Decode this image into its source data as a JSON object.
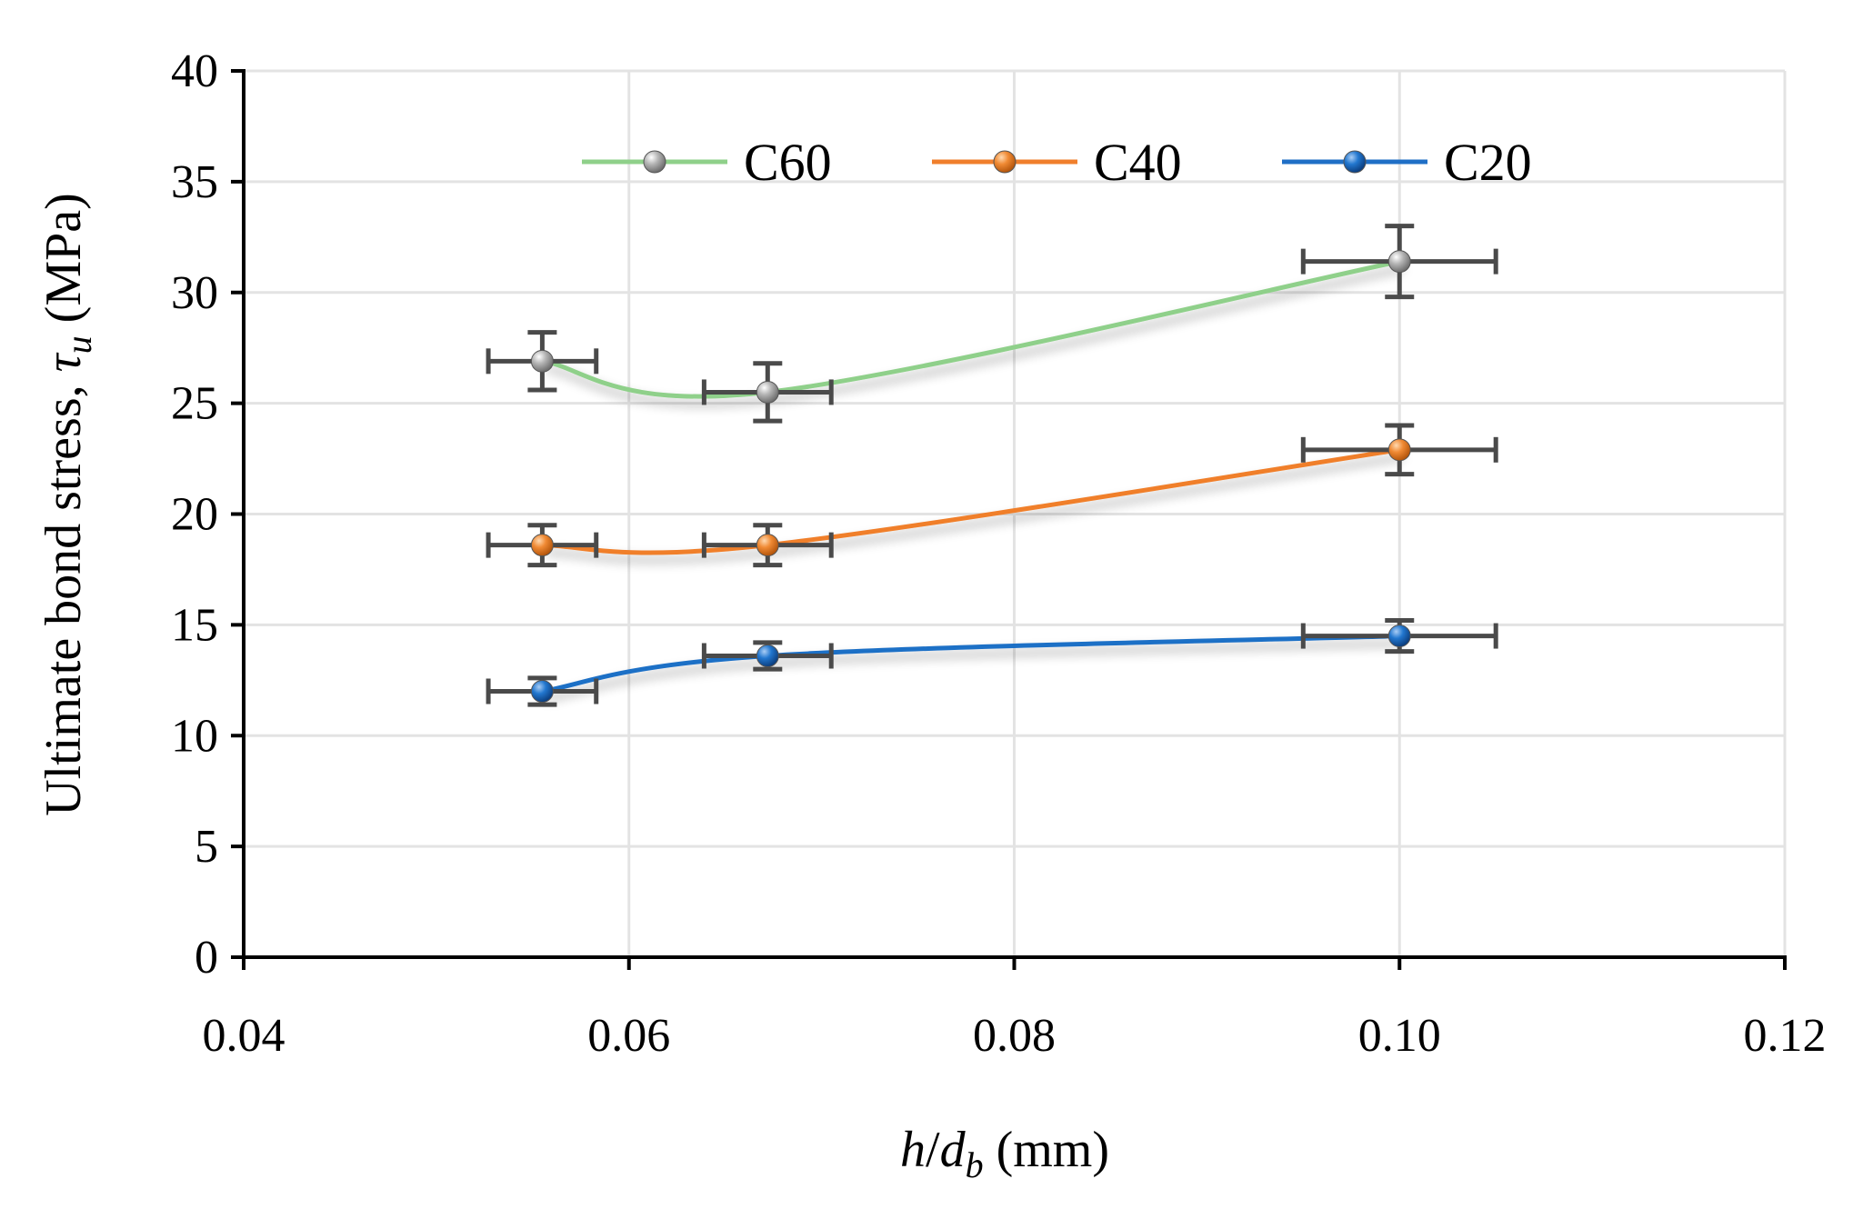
{
  "chart_data": {
    "type": "line",
    "title": "",
    "xlabel_parts": {
      "h": "h",
      "slash": "/",
      "d": "d",
      "sub": "b",
      "unit": " (mm)"
    },
    "ylabel_parts": {
      "main": "Ultimate bond stress, ",
      "tau": "τ",
      "sub": "u",
      "unit": " (MPa)"
    },
    "xlim": [
      0.04,
      0.12
    ],
    "ylim": [
      0,
      40
    ],
    "xticks": [
      0.04,
      0.06,
      0.08,
      0.1,
      0.12
    ],
    "xtick_labels": [
      "0.04",
      "0.06",
      "0.08",
      "0.10",
      "0.12"
    ],
    "yticks": [
      0,
      5,
      10,
      15,
      20,
      25,
      30,
      35,
      40
    ],
    "ytick_labels": [
      "0",
      "5",
      "10",
      "15",
      "20",
      "25",
      "30",
      "35",
      "40"
    ],
    "grid": true,
    "legend_position": "top",
    "series": [
      {
        "name": "C60",
        "color": "#8fd08a",
        "marker_color": "#9a9a9a",
        "x": [
          0.0555,
          0.0672,
          0.1
        ],
        "y": [
          26.9,
          25.5,
          31.4
        ],
        "yerr": [
          1.3,
          1.3,
          1.6
        ],
        "xerr": [
          0.0028,
          0.0033,
          0.005
        ]
      },
      {
        "name": "C40",
        "color": "#f07f2c",
        "marker_color": "#f07f2c",
        "x": [
          0.0555,
          0.0672,
          0.1
        ],
        "y": [
          18.6,
          18.6,
          22.9
        ],
        "yerr": [
          0.9,
          0.9,
          1.1
        ],
        "xerr": [
          0.0028,
          0.0033,
          0.005
        ]
      },
      {
        "name": "C20",
        "color": "#1f6fc6",
        "marker_color": "#1f6fc6",
        "x": [
          0.0555,
          0.0672,
          0.1
        ],
        "y": [
          12.0,
          13.6,
          14.5
        ],
        "yerr": [
          0.6,
          0.6,
          0.7
        ],
        "xerr": [
          0.0028,
          0.0033,
          0.005
        ]
      }
    ]
  }
}
